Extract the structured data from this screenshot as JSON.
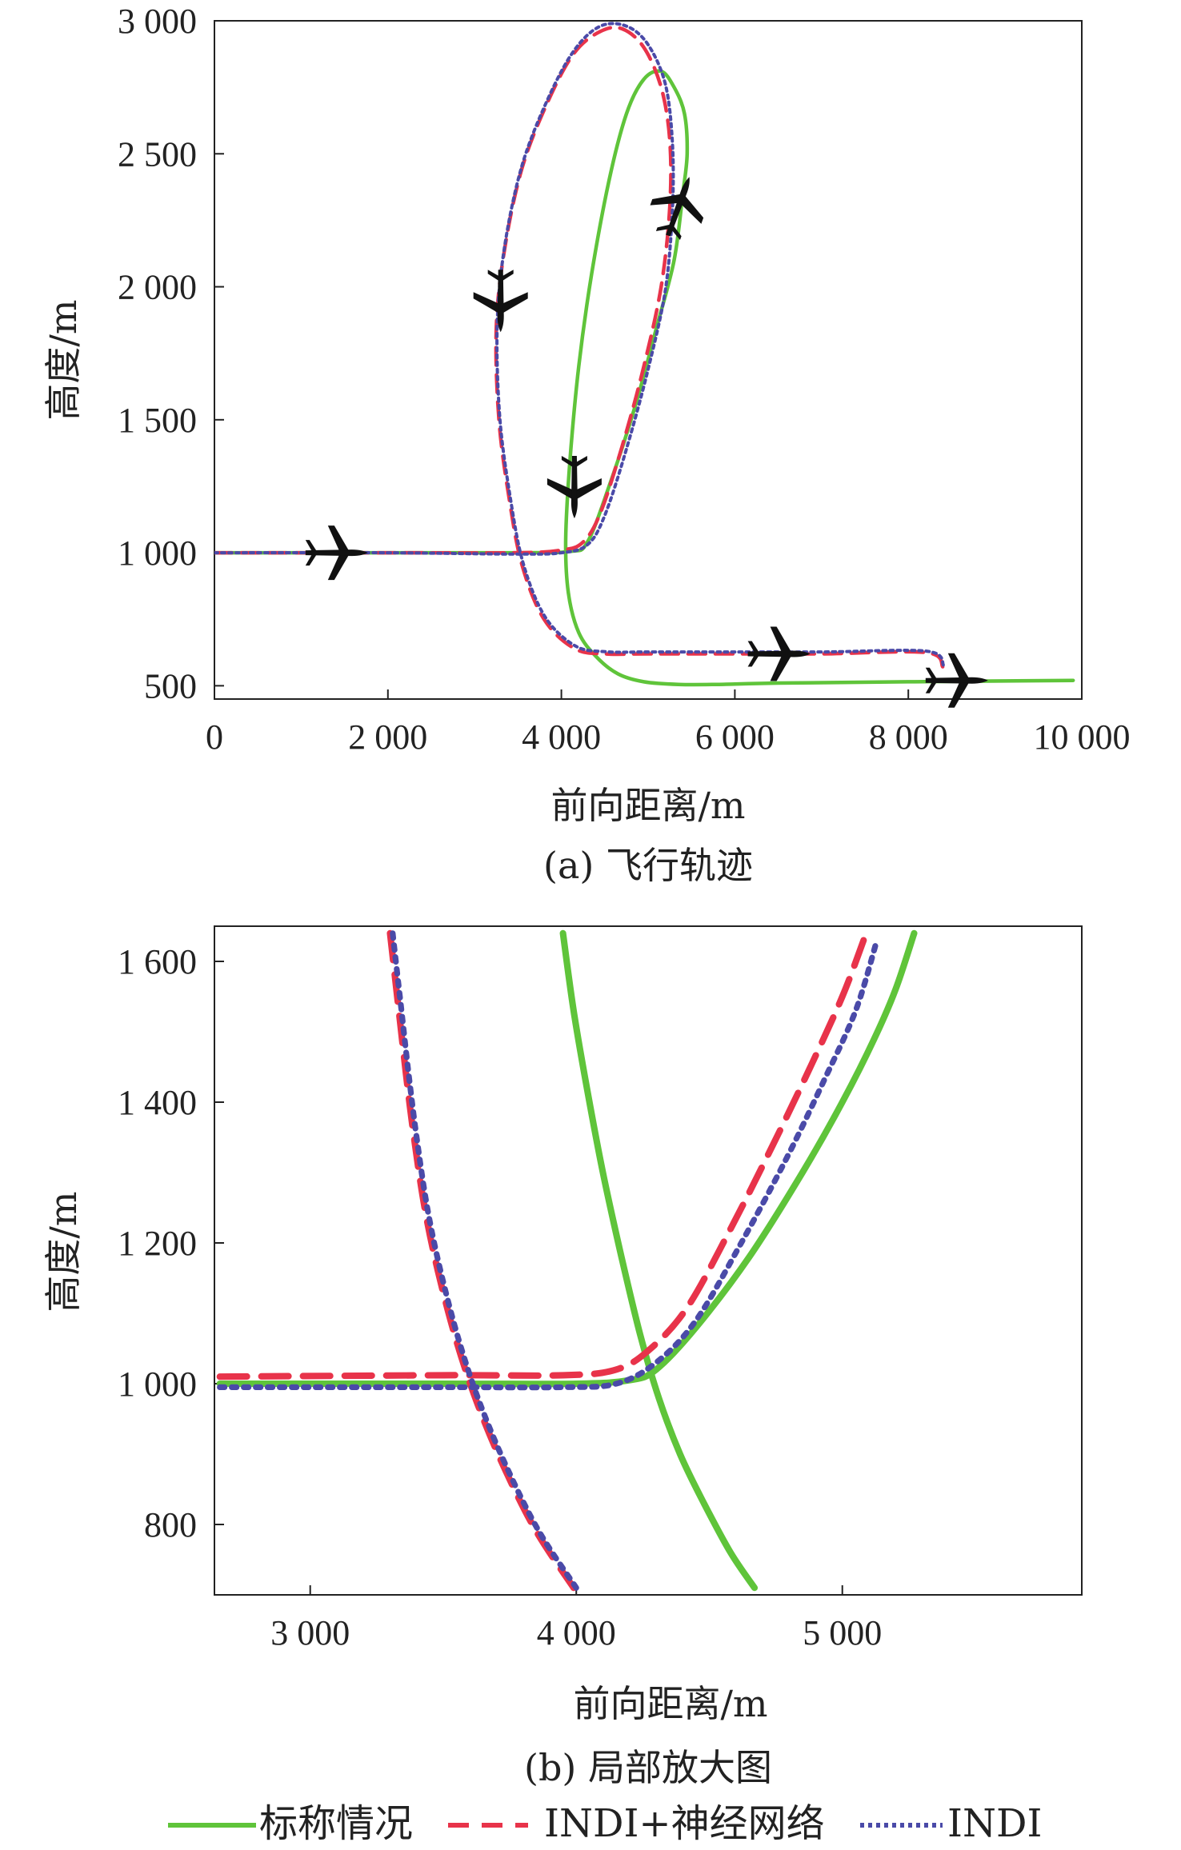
{
  "colors": {
    "nominal": "#5fc43a",
    "indi_nn": "#e8334a",
    "indi": "#4a4aa8",
    "indi_secondary": "#30c0c8",
    "axis": "#222222",
    "aircraft": "#111111"
  },
  "legend": [
    {
      "key": "nominal",
      "label": "标称情况",
      "style": "solid"
    },
    {
      "key": "indi_nn",
      "label": "INDI+神经网络",
      "style": "dashed"
    },
    {
      "key": "indi",
      "label": "INDI",
      "style": "dotted"
    }
  ],
  "chart_data": [
    {
      "type": "line",
      "caption": "(a) 飞行轨迹",
      "xlabel": "前向距离/m",
      "ylabel": "高度/m",
      "xlim": [
        0,
        10000
      ],
      "ylim": [
        450,
        3000
      ],
      "xticks": [
        0,
        2000,
        4000,
        6000,
        8000,
        10000
      ],
      "xtick_labels": [
        "0",
        "2 000",
        "4 000",
        "6 000",
        "8 000",
        "10 000"
      ],
      "yticks": [
        500,
        1000,
        1500,
        2000,
        2500,
        3000
      ],
      "ytick_labels": [
        "500",
        "1 000",
        "1 500",
        "2 000",
        "2 500",
        "3 000"
      ],
      "aircraft_icons": [
        {
          "x": 1400,
          "y": 1000,
          "heading": 0
        },
        {
          "x": 3300,
          "y": 1950,
          "heading": 90
        },
        {
          "x": 4150,
          "y": 1250,
          "heading": 90
        },
        {
          "x": 5350,
          "y": 2300,
          "heading": -70
        },
        {
          "x": 6500,
          "y": 620,
          "heading": 0
        },
        {
          "x": 8550,
          "y": 520,
          "heading": 0
        }
      ],
      "series": [
        {
          "key": "nominal",
          "x": [
            0,
            2000,
            3500,
            4100,
            4300,
            4550,
            4850,
            5100,
            5300,
            5400,
            5450,
            5420,
            5300,
            5150,
            4950,
            4750,
            4550,
            4350,
            4200,
            4100,
            4050,
            4080,
            4200,
            4400,
            4650,
            4950,
            5350,
            5800,
            6500,
            8000,
            9900
          ],
          "y": [
            1000,
            1000,
            1000,
            1005,
            1040,
            1250,
            1550,
            1850,
            2100,
            2350,
            2500,
            2650,
            2750,
            2810,
            2780,
            2650,
            2400,
            2050,
            1700,
            1350,
            1050,
            850,
            700,
            610,
            545,
            515,
            505,
            505,
            510,
            515,
            520
          ]
        },
        {
          "key": "indi_nn",
          "x": [
            0,
            2000,
            3500,
            4000,
            4250,
            4450,
            4700,
            4950,
            5150,
            5250,
            5250,
            5150,
            4950,
            4700,
            4450,
            4150,
            3850,
            3550,
            3350,
            3250,
            3280,
            3400,
            3550,
            3800,
            4150,
            4500,
            5000,
            6000,
            7000,
            8200,
            8400
          ],
          "y": [
            1000,
            1000,
            1000,
            1010,
            1040,
            1150,
            1400,
            1700,
            2000,
            2300,
            2550,
            2750,
            2900,
            2970,
            2960,
            2880,
            2700,
            2450,
            2150,
            1850,
            1500,
            1200,
            950,
            750,
            640,
            620,
            620,
            620,
            620,
            625,
            570
          ]
        },
        {
          "key": "indi",
          "x": [
            0,
            2000,
            3500,
            4000,
            4300,
            4500,
            4750,
            5000,
            5200,
            5280,
            5280,
            5200,
            5000,
            4750,
            4450,
            4150,
            3850,
            3550,
            3350,
            3260,
            3290,
            3410,
            3560,
            3810,
            4160,
            4510,
            5010,
            6010,
            7010,
            8210,
            8410
          ],
          "y": [
            1000,
            1000,
            995,
            1000,
            1030,
            1140,
            1390,
            1690,
            1990,
            2290,
            2540,
            2760,
            2910,
            2980,
            2980,
            2890,
            2710,
            2460,
            2160,
            1860,
            1510,
            1210,
            960,
            760,
            650,
            628,
            627,
            627,
            627,
            630,
            575
          ]
        }
      ]
    },
    {
      "type": "line",
      "caption": "(b) 局部放大图",
      "xlabel": "前向距离/m",
      "ylabel": "高度/m",
      "xlim": [
        2640,
        5900
      ],
      "ylim": [
        700,
        1650
      ],
      "xticks": [
        3000,
        4000,
        5000
      ],
      "xtick_labels": [
        "3 000",
        "4 000",
        "5 000"
      ],
      "yticks": [
        800,
        1000,
        1200,
        1400,
        1600
      ],
      "ytick_labels": [
        "800",
        "1 000",
        "1 200",
        "1 400",
        "1 600"
      ],
      "series": [
        {
          "key": "nominal",
          "x": [
            3950,
            3990,
            4040,
            4100,
            4170,
            4240,
            4310,
            4390,
            4480,
            4580,
            4670
          ],
          "y": [
            1640,
            1530,
            1420,
            1300,
            1180,
            1070,
            980,
            900,
            830,
            760,
            710
          ],
          "x2": [
            2660,
            3500,
            4000,
            4200,
            4300,
            4450,
            4650,
            4850,
            5000,
            5120,
            5200,
            5270
          ],
          "y2": [
            1000,
            1000,
            1000,
            1005,
            1020,
            1080,
            1180,
            1300,
            1400,
            1490,
            1560,
            1640
          ]
        },
        {
          "key": "indi_nn",
          "x": [
            3300,
            3330,
            3360,
            3390,
            3430,
            3480,
            3550,
            3630,
            3730,
            3850,
            3990
          ],
          "y": [
            1640,
            1540,
            1440,
            1350,
            1250,
            1160,
            1060,
            970,
            880,
            790,
            710
          ],
          "x2": [
            2660,
            3500,
            3950,
            4150,
            4280,
            4420,
            4580,
            4740,
            4880,
            5000,
            5080
          ],
          "y2": [
            1010,
            1012,
            1012,
            1020,
            1050,
            1110,
            1220,
            1340,
            1450,
            1550,
            1630
          ]
        },
        {
          "key": "indi",
          "x": [
            3310,
            3340,
            3370,
            3400,
            3440,
            3490,
            3560,
            3640,
            3740,
            3860,
            4000
          ],
          "y": [
            1640,
            1540,
            1440,
            1350,
            1250,
            1160,
            1060,
            970,
            880,
            790,
            710
          ],
          "x2": [
            2660,
            3500,
            3950,
            4150,
            4300,
            4450,
            4620,
            4790,
            4930,
            5050,
            5130
          ],
          "y2": [
            995,
            995,
            995,
            1000,
            1030,
            1090,
            1200,
            1320,
            1430,
            1530,
            1630
          ]
        }
      ]
    }
  ]
}
